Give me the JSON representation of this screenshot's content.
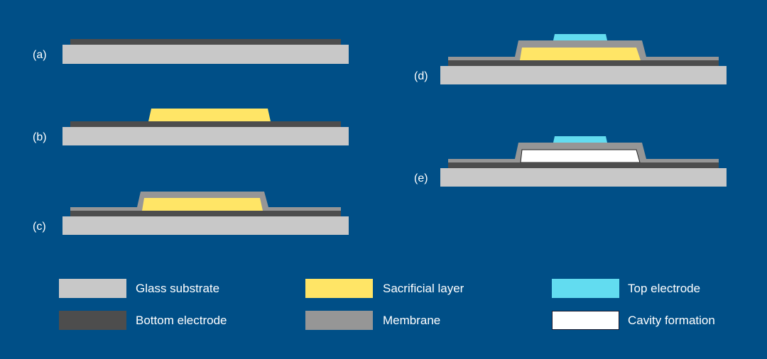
{
  "colors": {
    "background": "#004f87",
    "glass_substrate": "#c8c8c8",
    "bottom_electrode": "#4d4d4d",
    "sacrificial_layer": "#ffe566",
    "membrane": "#969696",
    "top_electrode": "#62dcf0",
    "cavity": "#ffffff"
  },
  "steps": [
    {
      "label": "(a)"
    },
    {
      "label": "(b)"
    },
    {
      "label": "(c)"
    },
    {
      "label": "(d)"
    },
    {
      "label": "(e)"
    }
  ],
  "legend": [
    {
      "label": "Glass substrate",
      "layer": "glass_substrate"
    },
    {
      "label": "Sacrificial layer",
      "layer": "sacrificial_layer"
    },
    {
      "label": "Top electrode",
      "layer": "top_electrode"
    },
    {
      "label": "Bottom electrode",
      "layer": "bottom_electrode"
    },
    {
      "label": "Membrane",
      "layer": "membrane"
    },
    {
      "label": "Cavity formation",
      "layer": "cavity"
    }
  ]
}
